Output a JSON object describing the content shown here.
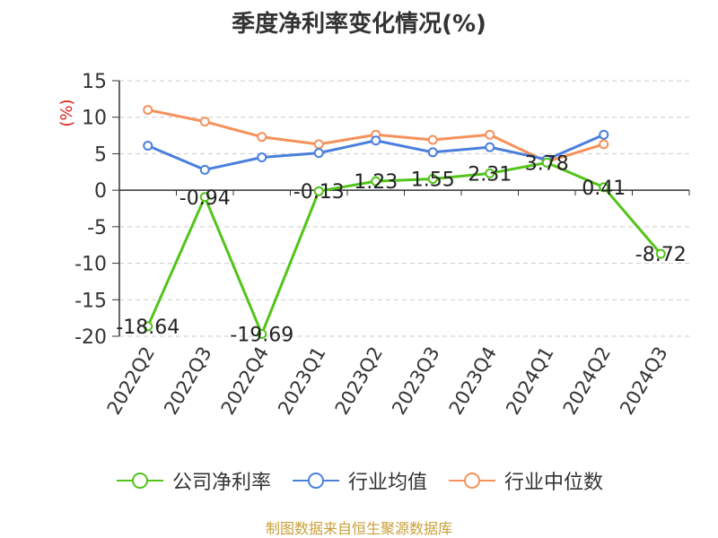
{
  "chart_data": {
    "type": "line",
    "title": "季度净利率变化情况(%)",
    "ylabel": "(%)",
    "categories": [
      "2022Q2",
      "2022Q3",
      "2022Q4",
      "2023Q1",
      "2023Q2",
      "2023Q3",
      "2023Q4",
      "2024Q1",
      "2024Q2",
      "2024Q3"
    ],
    "ylim": [
      -20,
      15
    ],
    "yticks": [
      15,
      10,
      5,
      0,
      -5,
      -10,
      -15,
      -20
    ],
    "grid": true,
    "legend_position": "bottom",
    "series": [
      {
        "name": "公司净利率",
        "color": "#52c41a",
        "values": [
          -18.64,
          -0.94,
          -19.69,
          -0.13,
          1.23,
          1.55,
          2.31,
          3.78,
          0.41,
          -8.72
        ],
        "labels": [
          "-18.64",
          "-0.94",
          "-19.69",
          "-0.13",
          "1.23",
          "1.55",
          "2.31",
          "3.78",
          "0.41",
          "-8.72"
        ]
      },
      {
        "name": "行业均值",
        "color": "#4a7fdc",
        "values": [
          6.1,
          2.8,
          4.5,
          5.1,
          6.8,
          5.2,
          5.9,
          4.2,
          7.6,
          null
        ]
      },
      {
        "name": "行业中位数",
        "color": "#f5915a",
        "values": [
          11.0,
          9.4,
          7.3,
          6.3,
          7.6,
          6.9,
          7.6,
          3.9,
          6.3,
          null
        ]
      }
    ],
    "source": "制图数据来自恒生聚源数据库"
  }
}
